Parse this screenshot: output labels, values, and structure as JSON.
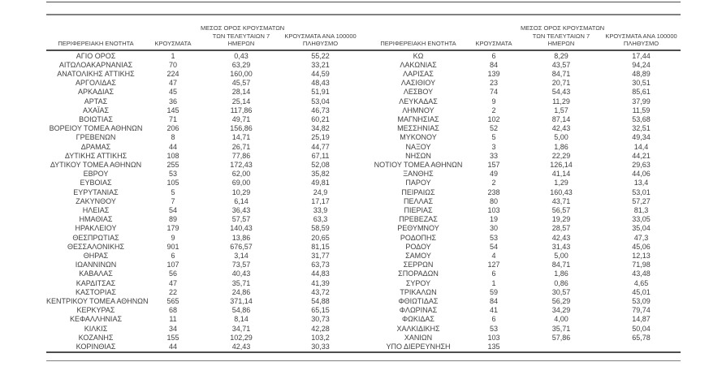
{
  "page": {
    "background": "#ffffff",
    "text_color": "#3f3f3f",
    "rule_dark": "#4d4d4d",
    "rule_gray": "#808080"
  },
  "headers": {
    "region": "ΠΕΡΙΦΕΡΕΙΑΚΗ ΕΝΟΤΗΤΑ",
    "cases": "ΚΡΟΥΣΜΑΤΑ",
    "avg7_line1": "ΜΕΣΟΣ ΟΡΟΣ ΚΡΟΥΣΜΑΤΩΝ",
    "avg7_line2": "ΤΩΝ ΤΕΛΕΥΤΑΙΩΝ 7",
    "avg7_line3": "ΗΜΕΡΩΝ",
    "per100k_line1": "ΚΡΟΥΣΜΑΤΑ ΑΝΑ 100000",
    "per100k_line2": "ΠΛΗΘΥΣΜΟ"
  },
  "left_table": {
    "rows": [
      [
        "ΑΓΙΟ ΟΡΟΣ",
        "1",
        "0,43",
        "55,22"
      ],
      [
        "ΑΙΤΩΛΟΑΚΑΡΝΑΝΙΑΣ",
        "70",
        "63,29",
        "33,21"
      ],
      [
        "ΑΝΑΤΟΛΙΚΗΣ ΑΤΤΙΚΗΣ",
        "224",
        "160,00",
        "44,59"
      ],
      [
        "ΑΡΓΟΛΙΔΑΣ",
        "47",
        "45,57",
        "48,43"
      ],
      [
        "ΑΡΚΑΔΙΑΣ",
        "45",
        "28,14",
        "51,91"
      ],
      [
        "ΑΡΤΑΣ",
        "36",
        "25,14",
        "53,04"
      ],
      [
        "ΑΧΑΪΑΣ",
        "145",
        "117,86",
        "46,73"
      ],
      [
        "ΒΟΙΩΤΙΑΣ",
        "71",
        "49,71",
        "60,21"
      ],
      [
        "ΒΟΡΕΙΟΥ ΤΟΜΕΑ ΑΘΗΝΩΝ",
        "206",
        "156,86",
        "34,82"
      ],
      [
        "ΓΡΕΒΕΝΩΝ",
        "8",
        "14,71",
        "25,19"
      ],
      [
        "ΔΡΑΜΑΣ",
        "44",
        "26,71",
        "44,77"
      ],
      [
        "ΔΥΤΙΚΗΣ ΑΤΤΙΚΗΣ",
        "108",
        "77,86",
        "67,11"
      ],
      [
        "ΔΥΤΙΚΟΥ ΤΟΜΕΑ ΑΘΗΝΩΝ",
        "255",
        "172,43",
        "52,08"
      ],
      [
        "ΕΒΡΟΥ",
        "53",
        "62,00",
        "35,82"
      ],
      [
        "ΕΥΒΟΙΑΣ",
        "105",
        "69,00",
        "49,81"
      ],
      [
        "ΕΥΡΥΤΑΝΙΑΣ",
        "5",
        "10,29",
        "24,9"
      ],
      [
        "ΖΑΚΥΝΘΟΥ",
        "7",
        "6,14",
        "17,17"
      ],
      [
        "ΗΛΕΙΑΣ",
        "54",
        "36,43",
        "33,9"
      ],
      [
        "ΗΜΑΘΙΑΣ",
        "89",
        "57,57",
        "63,3"
      ],
      [
        "ΗΡΑΚΛΕΙΟΥ",
        "179",
        "140,43",
        "58,59"
      ],
      [
        "ΘΕΣΠΡΩΤΙΑΣ",
        "9",
        "13,86",
        "20,65"
      ],
      [
        "ΘΕΣΣΑΛΟΝΙΚΗΣ",
        "901",
        "676,57",
        "81,15"
      ],
      [
        "ΘΗΡΑΣ",
        "6",
        "3,14",
        "31,77"
      ],
      [
        "ΙΩΑΝΝΙΝΩΝ",
        "107",
        "73,57",
        "63,73"
      ],
      [
        "ΚΑΒΑΛΑΣ",
        "56",
        "40,43",
        "44,83"
      ],
      [
        "ΚΑΡΔΙΤΣΑΣ",
        "47",
        "35,71",
        "41,39"
      ],
      [
        "ΚΑΣΤΟΡΙΑΣ",
        "22",
        "24,86",
        "43,72"
      ],
      [
        "ΚΕΝΤΡΙΚΟΥ ΤΟΜΕΑ ΑΘΗΝΩΝ",
        "565",
        "371,14",
        "54,88"
      ],
      [
        "ΚΕΡΚΥΡΑΣ",
        "68",
        "54,86",
        "65,15"
      ],
      [
        "ΚΕΦΑΛΛΗΝΙΑΣ",
        "11",
        "8,14",
        "30,73"
      ],
      [
        "ΚΙΛΚΙΣ",
        "34",
        "34,71",
        "42,28"
      ],
      [
        "ΚΟΖΑΝΗΣ",
        "155",
        "102,29",
        "103,2"
      ],
      [
        "ΚΟΡΙΝΘΙΑΣ",
        "44",
        "42,43",
        "30,33"
      ]
    ]
  },
  "right_table": {
    "rows": [
      [
        "ΚΩ",
        "6",
        "8,29",
        "17,44"
      ],
      [
        "ΛΑΚΩΝΙΑΣ",
        "84",
        "43,57",
        "94,24"
      ],
      [
        "ΛΑΡΙΣΑΣ",
        "139",
        "84,71",
        "48,89"
      ],
      [
        "ΛΑΣΙΘΙΟΥ",
        "23",
        "20,71",
        "30,51"
      ],
      [
        "ΛΕΣΒΟΥ",
        "74",
        "54,43",
        "85,61"
      ],
      [
        "ΛΕΥΚΑΔΑΣ",
        "9",
        "11,29",
        "37,99"
      ],
      [
        "ΛΗΜΝΟΥ",
        "2",
        "1,57",
        "11,59"
      ],
      [
        "ΜΑΓΝΗΣΙΑΣ",
        "102",
        "87,14",
        "53,68"
      ],
      [
        "ΜΕΣΣΗΝΙΑΣ",
        "52",
        "42,43",
        "32,51"
      ],
      [
        "ΜΥΚΟΝΟΥ",
        "5",
        "5,00",
        "49,34"
      ],
      [
        "ΝΑΞΟΥ",
        "3",
        "1,86",
        "14,4"
      ],
      [
        "ΝΗΣΩΝ",
        "33",
        "22,29",
        "44,21"
      ],
      [
        "ΝΟΤΙΟΥ ΤΟΜΕΑ ΑΘΗΝΩΝ",
        "157",
        "126,14",
        "29,63"
      ],
      [
        "ΞΑΝΘΗΣ",
        "49",
        "41,14",
        "44,06"
      ],
      [
        "ΠΑΡΟΥ",
        "2",
        "1,29",
        "13,4"
      ],
      [
        "ΠΕΙΡΑΙΩΣ",
        "238",
        "160,43",
        "53,01"
      ],
      [
        "ΠΕΛΛΑΣ",
        "80",
        "43,71",
        "57,27"
      ],
      [
        "ΠΙΕΡΙΑΣ",
        "103",
        "56,57",
        "81,3"
      ],
      [
        "ΠΡΕΒΕΖΑΣ",
        "19",
        "19,29",
        "33,05"
      ],
      [
        "ΡΕΘΥΜΝΟΥ",
        "30",
        "28,57",
        "35,04"
      ],
      [
        "ΡΟΔΟΠΗΣ",
        "53",
        "42,43",
        "47,3"
      ],
      [
        "ΡΟΔΟΥ",
        "54",
        "31,43",
        "45,06"
      ],
      [
        "ΣΑΜΟΥ",
        "4",
        "5,00",
        "12,13"
      ],
      [
        "ΣΕΡΡΩΝ",
        "127",
        "84,71",
        "71,98"
      ],
      [
        "ΣΠΟΡΑΔΩΝ",
        "6",
        "1,86",
        "43,48"
      ],
      [
        "ΣΥΡΟΥ",
        "1",
        "0,86",
        "4,65"
      ],
      [
        "ΤΡΙΚΑΛΩΝ",
        "59",
        "30,57",
        "45,01"
      ],
      [
        "ΦΘΙΩΤΙΔΑΣ",
        "84",
        "56,29",
        "53,09"
      ],
      [
        "ΦΛΩΡΙΝΑΣ",
        "41",
        "34,29",
        "79,74"
      ],
      [
        "ΦΩΚΙΔΑΣ",
        "6",
        "4,00",
        "14,87"
      ],
      [
        "ΧΑΛΚΙΔΙΚΗΣ",
        "53",
        "35,71",
        "50,04"
      ],
      [
        "ΧΑΝΙΩΝ",
        "103",
        "57,86",
        "65,78"
      ],
      [
        "ΥΠΟ ΔΙΕΡΕΥΝΗΣΗ",
        "135",
        "",
        ""
      ]
    ]
  }
}
